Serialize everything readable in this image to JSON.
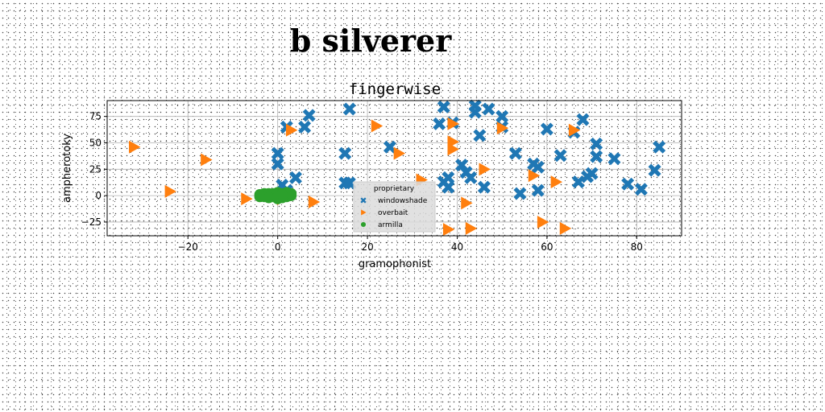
{
  "page": {
    "title": "b silverer"
  },
  "chart_data": {
    "type": "scatter",
    "title": "fingerwise",
    "xlabel": "gramophonist",
    "ylabel": "ampherotoky",
    "xlim": [
      -38,
      90
    ],
    "ylim": [
      -38,
      90
    ],
    "xticks": [
      -20,
      0,
      20,
      40,
      60,
      80
    ],
    "yticks": [
      -25,
      0,
      25,
      50,
      75
    ],
    "grid": true,
    "legend": {
      "title": "proprietary",
      "placement": "lower-center"
    },
    "series": [
      {
        "name": "windowshade",
        "color": "#1f77b4",
        "marker": "x",
        "points": [
          [
            0,
            40
          ],
          [
            0,
            30
          ],
          [
            2,
            65
          ],
          [
            4,
            17
          ],
          [
            6,
            65
          ],
          [
            7,
            76
          ],
          [
            15,
            40
          ],
          [
            15,
            12
          ],
          [
            16,
            12
          ],
          [
            16,
            82
          ],
          [
            25,
            46
          ],
          [
            36,
            68
          ],
          [
            37,
            84
          ],
          [
            37,
            13
          ],
          [
            38,
            8
          ],
          [
            38,
            17
          ],
          [
            39,
            69
          ],
          [
            41,
            29
          ],
          [
            42,
            22
          ],
          [
            43,
            17
          ],
          [
            44,
            85
          ],
          [
            44,
            79
          ],
          [
            45,
            57
          ],
          [
            46,
            8
          ],
          [
            47,
            82
          ],
          [
            50,
            75
          ],
          [
            50,
            65
          ],
          [
            53,
            40
          ],
          [
            54,
            2
          ],
          [
            57,
            30
          ],
          [
            58,
            27
          ],
          [
            58,
            5
          ],
          [
            60,
            63
          ],
          [
            63,
            38
          ],
          [
            66,
            60
          ],
          [
            67,
            13
          ],
          [
            68,
            72
          ],
          [
            69,
            18
          ],
          [
            70,
            21
          ],
          [
            71,
            49
          ],
          [
            71,
            37
          ],
          [
            75,
            35
          ],
          [
            78,
            11
          ],
          [
            81,
            6
          ],
          [
            84,
            24
          ],
          [
            85,
            46
          ],
          [
            1,
            10
          ],
          [
            2,
            5
          ]
        ]
      },
      {
        "name": "overbait",
        "color": "#ff7f0e",
        "marker": "triangle-right",
        "points": [
          [
            -32,
            46
          ],
          [
            -24,
            4
          ],
          [
            -16,
            34
          ],
          [
            -7,
            -3
          ],
          [
            -1,
            0
          ],
          [
            1,
            -3
          ],
          [
            3,
            62
          ],
          [
            8,
            -6
          ],
          [
            22,
            66
          ],
          [
            27,
            40
          ],
          [
            32,
            15
          ],
          [
            38,
            -32
          ],
          [
            39,
            68
          ],
          [
            39,
            51
          ],
          [
            39,
            44
          ],
          [
            42,
            -7
          ],
          [
            43,
            -31
          ],
          [
            46,
            25
          ],
          [
            50,
            64
          ],
          [
            57,
            19
          ],
          [
            59,
            -25
          ],
          [
            62,
            13
          ],
          [
            64,
            -31
          ],
          [
            66,
            62
          ]
        ]
      },
      {
        "name": "armilla",
        "color": "#2ca02c",
        "marker": "circle",
        "points": [
          [
            -4,
            1
          ],
          [
            -3,
            -1
          ],
          [
            -3,
            2
          ],
          [
            -2,
            0
          ],
          [
            -2,
            2
          ],
          [
            -1,
            -1
          ],
          [
            -1,
            2
          ],
          [
            0,
            -3
          ],
          [
            0,
            1
          ],
          [
            0,
            3
          ],
          [
            1,
            0
          ],
          [
            1,
            -2
          ],
          [
            1,
            2
          ],
          [
            2,
            1
          ],
          [
            2,
            -1
          ],
          [
            2,
            3
          ],
          [
            3,
            0
          ],
          [
            3,
            2
          ],
          [
            -4,
            -1
          ],
          [
            -2,
            -2
          ],
          [
            0,
            -1
          ],
          [
            1,
            1
          ]
        ]
      }
    ]
  }
}
